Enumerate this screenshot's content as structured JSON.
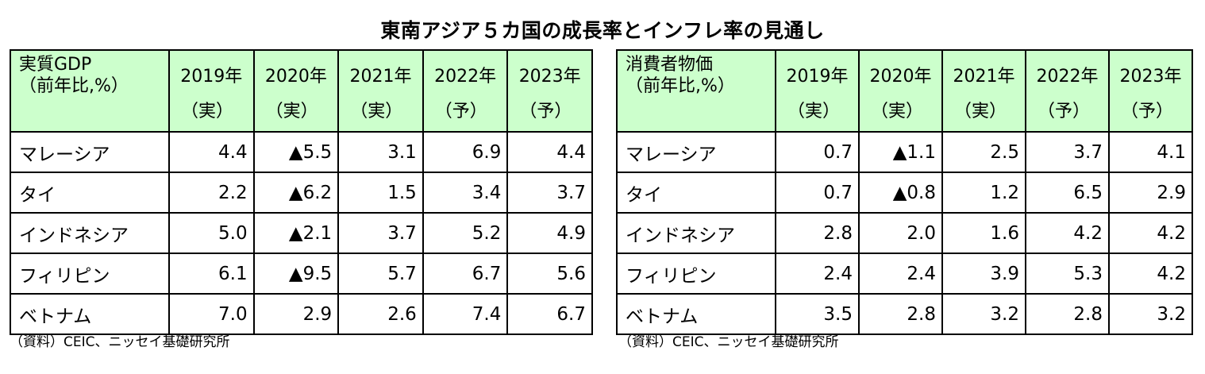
{
  "title": "東南アジア５カ国の成長率とインフレ率の見通し",
  "chart_data": [
    {
      "type": "table",
      "header": [
        "実質GDP",
        "（前年比,%）"
      ],
      "columns": [
        {
          "year": "2019年",
          "status": "（実）"
        },
        {
          "year": "2020年",
          "status": "（実）"
        },
        {
          "year": "2021年",
          "status": "（実）"
        },
        {
          "year": "2022年",
          "status": "（予）"
        },
        {
          "year": "2023年",
          "status": "（予）"
        }
      ],
      "rows": [
        {
          "country": "マレーシア",
          "values": [
            "4.4",
            "▲5.5",
            "3.1",
            "6.9",
            "4.4"
          ]
        },
        {
          "country": "タイ",
          "values": [
            "2.2",
            "▲6.2",
            "1.5",
            "3.4",
            "3.7"
          ]
        },
        {
          "country": "インドネシア",
          "values": [
            "5.0",
            "▲2.1",
            "3.7",
            "5.2",
            "4.9"
          ]
        },
        {
          "country": "フィリピン",
          "values": [
            "6.1",
            "▲9.5",
            "5.7",
            "6.7",
            "5.6"
          ]
        },
        {
          "country": "ベトナム",
          "values": [
            "7.0",
            "2.9",
            "2.6",
            "7.4",
            "6.7"
          ]
        }
      ],
      "source": "（資料）CEIC、ニッセイ基礎研究所"
    },
    {
      "type": "table",
      "header": [
        "消費者物価",
        "（前年比,%）"
      ],
      "columns": [
        {
          "year": "2019年",
          "status": "（実）"
        },
        {
          "year": "2020年",
          "status": "（実）"
        },
        {
          "year": "2021年",
          "status": "（実）"
        },
        {
          "year": "2022年",
          "status": "（予）"
        },
        {
          "year": "2023年",
          "status": "（予）"
        }
      ],
      "rows": [
        {
          "country": "マレーシア",
          "values": [
            "0.7",
            "▲1.1",
            "2.5",
            "3.7",
            "4.1"
          ]
        },
        {
          "country": "タイ",
          "values": [
            "0.7",
            "▲0.8",
            "1.2",
            "6.5",
            "2.9"
          ]
        },
        {
          "country": "インドネシア",
          "values": [
            "2.8",
            "2.0",
            "1.6",
            "4.2",
            "4.2"
          ]
        },
        {
          "country": "フィリピン",
          "values": [
            "2.4",
            "2.4",
            "3.9",
            "5.3",
            "4.2"
          ]
        },
        {
          "country": "ベトナム",
          "values": [
            "3.5",
            "2.8",
            "3.2",
            "2.8",
            "3.2"
          ]
        }
      ],
      "source": "（資料）CEIC、ニッセイ基礎研究所"
    }
  ],
  "colors": {
    "header_bg": "#ccffcc",
    "border": "#000000"
  }
}
